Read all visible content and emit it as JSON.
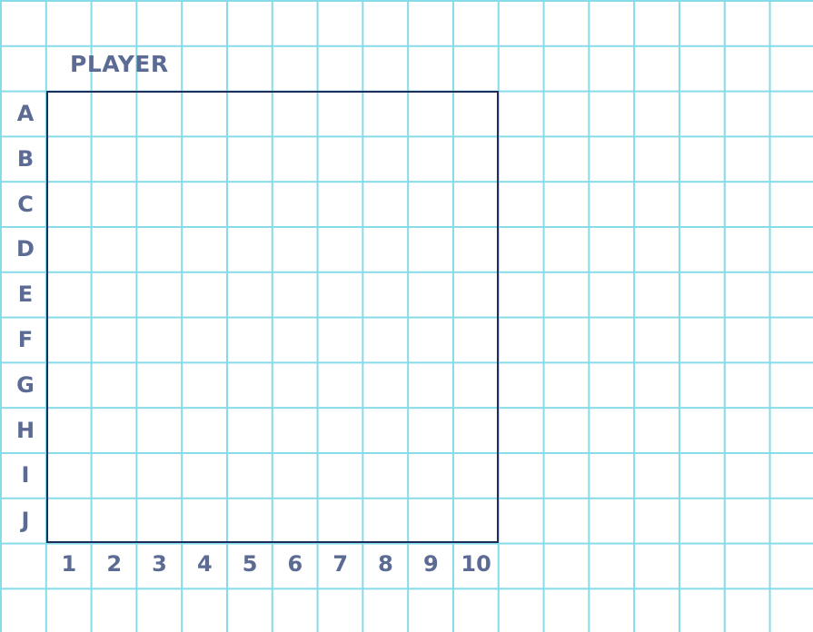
{
  "board": {
    "title": "PLAYER",
    "row_labels": [
      "A",
      "B",
      "C",
      "D",
      "E",
      "F",
      "G",
      "H",
      "I",
      "J"
    ],
    "column_labels": [
      "1",
      "2",
      "3",
      "4",
      "5",
      "6",
      "7",
      "8",
      "9",
      "10"
    ]
  },
  "colors": {
    "grid_line": "#86dbe8",
    "board_border": "#1e2e5c",
    "label_text": "#5c6b94",
    "background": "#ffffff"
  }
}
